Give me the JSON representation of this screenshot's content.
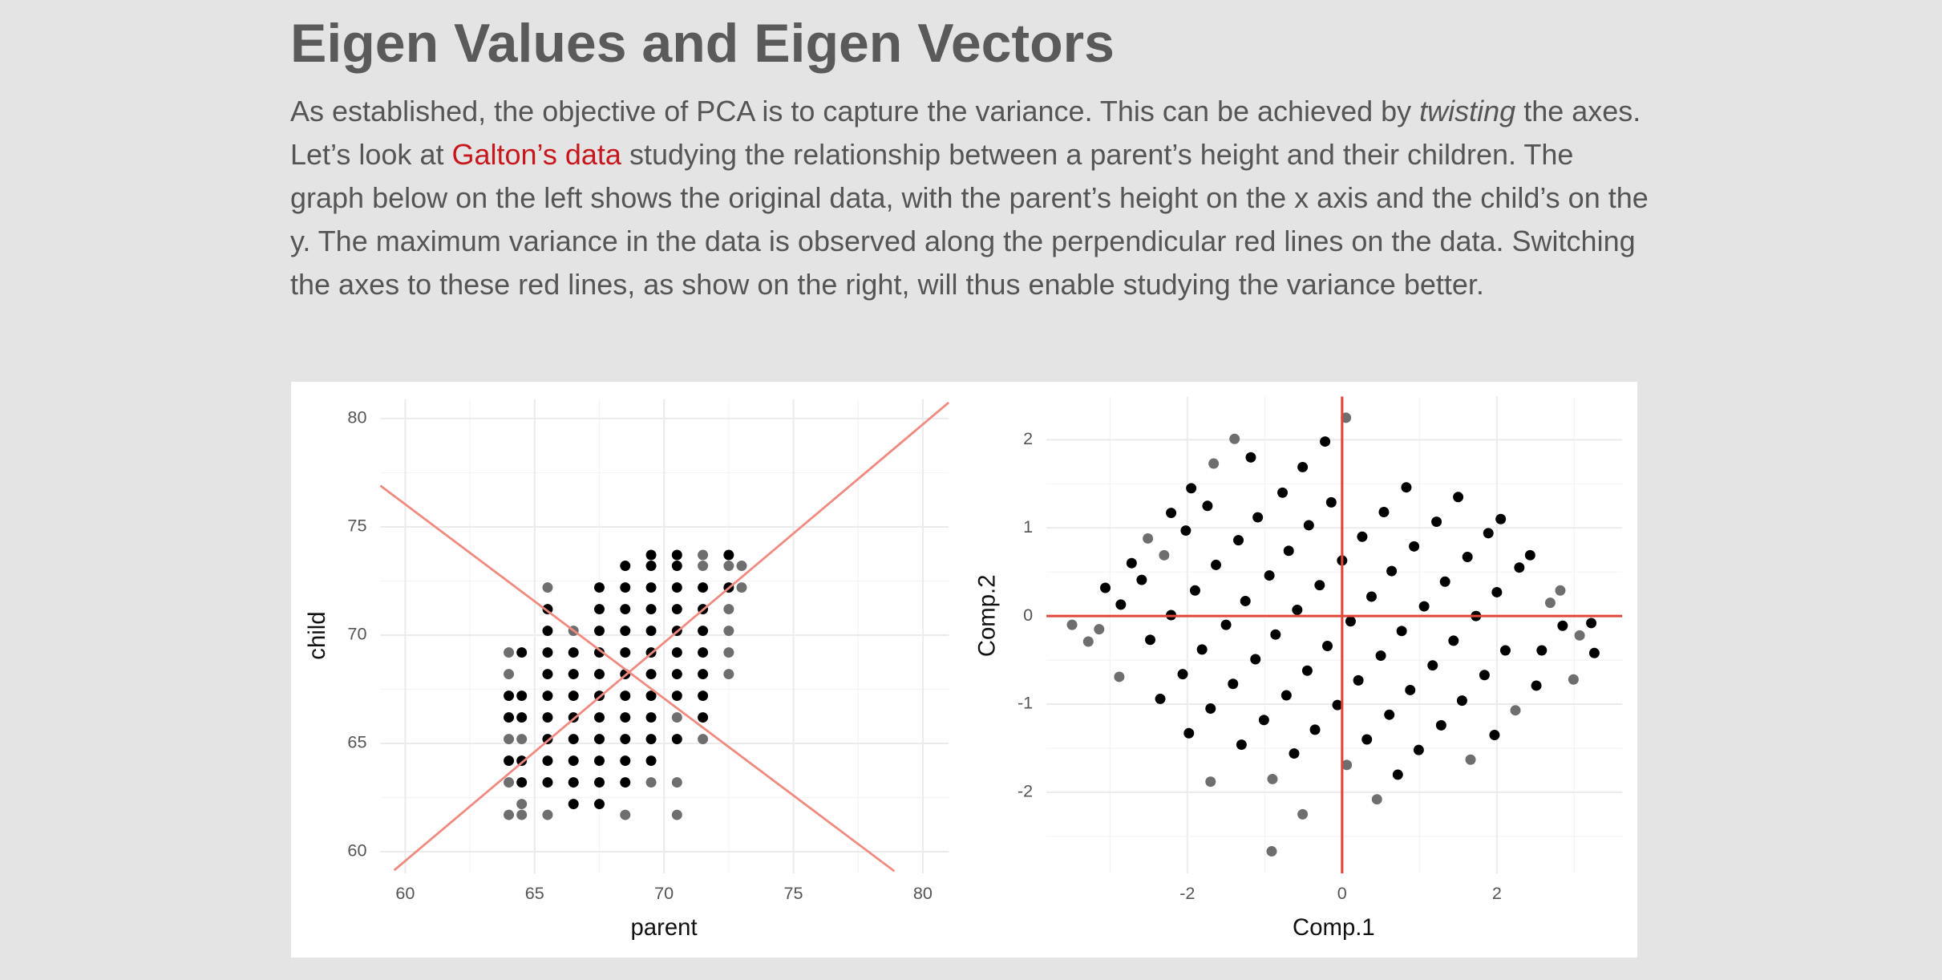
{
  "header": {
    "title": "Eigen Values and Eigen Vectors"
  },
  "body": {
    "paragraph": [
      "As established, the objective of PCA is to capture the variance. This can be achieved by ",
      "twisting",
      " the axes. Let’s look at ",
      "Galton’s data",
      " studying the relationship between a parent’s height and their children. The graph below on the left shows the original data, with the parent’s height on the x axis and the child’s on the y. The maximum variance in the data is observed along the perpendicular red lines on the data. Switching the axes to these red lines, as show on the right, will thus enable studying the variance better."
    ]
  },
  "chart_data": [
    {
      "type": "scatter",
      "xlabel": "parent",
      "ylabel": "child",
      "xlim": [
        59.04,
        81.0
      ],
      "ylim": [
        59.0,
        80.9
      ],
      "xticks": [
        60,
        65,
        70,
        75,
        80
      ],
      "yticks": [
        60,
        65,
        70,
        75,
        80
      ],
      "grid": true,
      "minor_grid": true,
      "series": [
        {
          "color": "#000000",
          "x": [
            64,
            64,
            64,
            64.5,
            64.5,
            64.5,
            64.5,
            64.5,
            65.5,
            65.5,
            65.5,
            65.5,
            65.5,
            65.5,
            65.5,
            65.5,
            65.5,
            66.5,
            66.5,
            66.5,
            66.5,
            66.5,
            66.5,
            66.5,
            66.5,
            67.5,
            67.5,
            67.5,
            67.5,
            67.5,
            67.5,
            67.5,
            67.5,
            67.5,
            67.5,
            67.5,
            68.5,
            68.5,
            68.5,
            68.5,
            68.5,
            68.5,
            68.5,
            68.5,
            68.5,
            68.5,
            68.5,
            69.5,
            69.5,
            69.5,
            69.5,
            69.5,
            69.5,
            69.5,
            69.5,
            69.5,
            69.5,
            69.5,
            70.5,
            70.5,
            70.5,
            70.5,
            70.5,
            70.5,
            70.5,
            70.5,
            70.5,
            71.5,
            71.5,
            71.5,
            71.5,
            71.5,
            71.5,
            71.5,
            72.5,
            72.5
          ],
          "y": [
            67.2,
            66.2,
            64.2,
            69.2,
            67.2,
            66.2,
            64.2,
            63.2,
            71.2,
            70.2,
            69.2,
            68.2,
            67.2,
            66.2,
            65.2,
            64.2,
            63.2,
            69.2,
            68.2,
            67.2,
            66.2,
            65.2,
            64.2,
            63.2,
            62.2,
            72.2,
            71.2,
            70.2,
            69.2,
            68.2,
            67.2,
            66.2,
            65.2,
            64.2,
            63.2,
            62.2,
            73.2,
            72.2,
            71.2,
            70.2,
            69.2,
            68.2,
            67.2,
            66.2,
            65.2,
            64.2,
            63.2,
            73.7,
            73.2,
            72.2,
            71.2,
            70.2,
            69.2,
            68.2,
            67.2,
            66.2,
            65.2,
            64.2,
            73.7,
            73.2,
            72.2,
            71.2,
            70.2,
            69.2,
            68.2,
            67.2,
            65.2,
            72.2,
            71.2,
            70.2,
            69.2,
            68.2,
            67.2,
            66.2,
            73.7,
            72.2
          ]
        },
        {
          "color": "#6e6e6e",
          "x": [
            64,
            64,
            64,
            64,
            64,
            64.5,
            64.5,
            64.5,
            65.5,
            65.5,
            66.5,
            68.5,
            69.5,
            70.5,
            70.5,
            70.5,
            71.5,
            71.5,
            71.5,
            72.5,
            72.5,
            72.5,
            72.5,
            72.5,
            73,
            73
          ],
          "y": [
            69.2,
            68.2,
            65.2,
            63.2,
            61.7,
            65.2,
            62.2,
            61.7,
            72.2,
            61.7,
            70.2,
            61.7,
            63.2,
            66.2,
            63.2,
            61.7,
            73.7,
            73.2,
            65.2,
            73.2,
            71.2,
            70.2,
            69.2,
            68.2,
            73.2,
            72.2
          ]
        }
      ],
      "lines": [
        {
          "color": "#f08a80",
          "x": [
            59.04,
            78.9
          ],
          "y": [
            76.9,
            59.1
          ]
        },
        {
          "color": "#f08a80",
          "x": [
            59.57,
            81.0
          ],
          "y": [
            59.14,
            80.74
          ]
        }
      ]
    },
    {
      "type": "scatter",
      "xlabel": "Comp.1",
      "ylabel": "Comp.2",
      "xlim": [
        -3.82,
        3.62
      ],
      "ylim": [
        -2.92,
        2.49
      ],
      "xticks": [
        -2,
        0,
        2
      ],
      "yticks": [
        -2,
        -1,
        0,
        1,
        2
      ],
      "grid": true,
      "minor_grid": true,
      "series": [
        {
          "color": "#000000",
          "x": [
            -1.18,
            -0.22,
            -0.51,
            -0.77,
            -1.09,
            -1.34,
            -1.63,
            -1.9,
            -2.21,
            -2.48,
            -2.02,
            -2.21,
            -1.95,
            -1.74,
            -2.59,
            -3.06,
            -2.86,
            -2.72,
            -0.14,
            -0.43,
            -0.69,
            -0.94,
            -1.25,
            -1.5,
            -1.81,
            -2.06,
            -2.35,
            0.83,
            0.54,
            0.26,
            0.0,
            -0.29,
            -0.58,
            -0.86,
            -1.12,
            -1.41,
            -1.7,
            -1.98,
            1.5,
            1.22,
            0.93,
            0.64,
            0.38,
            0.11,
            -0.19,
            -0.45,
            -0.72,
            -1.01,
            -1.3,
            1.89,
            2.05,
            1.62,
            1.33,
            1.06,
            0.77,
            0.5,
            0.21,
            -0.06,
            -0.35,
            -0.62,
            2.29,
            2.0,
            1.73,
            1.44,
            1.17,
            0.88,
            0.61,
            0.32,
            2.43,
            2.85,
            2.58,
            2.11,
            1.84,
            1.55,
            1.28,
            0.99,
            0.72,
            1.97,
            3.26,
            3.22,
            2.51
          ],
          "y": [
            1.8,
            1.98,
            1.69,
            1.4,
            1.12,
            0.86,
            0.58,
            0.29,
            0.01,
            -0.27,
            0.97,
            1.17,
            1.45,
            1.25,
            0.41,
            0.32,
            0.13,
            0.6,
            1.29,
            1.03,
            0.74,
            0.46,
            0.17,
            -0.1,
            -0.38,
            -0.66,
            -0.94,
            1.46,
            1.18,
            0.9,
            0.63,
            0.35,
            0.07,
            -0.21,
            -0.49,
            -0.77,
            -1.05,
            -1.33,
            1.35,
            1.07,
            0.79,
            0.51,
            0.22,
            -0.06,
            -0.34,
            -0.62,
            -0.9,
            -1.18,
            -1.46,
            0.94,
            1.1,
            0.67,
            0.39,
            0.11,
            -0.17,
            -0.45,
            -0.73,
            -1.01,
            -1.29,
            -1.56,
            0.55,
            0.27,
            0.0,
            -0.28,
            -0.56,
            -0.84,
            -1.12,
            -1.4,
            0.69,
            -0.11,
            -0.39,
            -0.39,
            -0.67,
            -0.96,
            -1.24,
            -1.52,
            -1.8,
            -1.35,
            -0.42,
            -0.08,
            -0.79
          ]
        },
        {
          "color": "#6e6e6e",
          "x": [
            -3.49,
            -3.28,
            -3.14,
            -2.88,
            -2.51,
            -2.3,
            -1.66,
            -1.39,
            -1.7,
            -0.9,
            -0.51,
            -0.91,
            0.05,
            0.06,
            0.45,
            1.66,
            2.24,
            2.69,
            2.82,
            2.99,
            3.07
          ],
          "y": [
            -0.1,
            -0.29,
            -0.15,
            -0.69,
            0.88,
            0.69,
            1.73,
            2.01,
            -1.88,
            -1.85,
            -2.25,
            -2.67,
            2.25,
            -1.69,
            -2.08,
            -1.63,
            -1.07,
            0.15,
            0.29,
            -0.72,
            -0.22
          ]
        }
      ],
      "reference_lines": [
        {
          "axis": "x",
          "value": 0,
          "color": "#e4453a"
        },
        {
          "axis": "y",
          "value": 0,
          "color": "#e4453a"
        }
      ]
    }
  ]
}
